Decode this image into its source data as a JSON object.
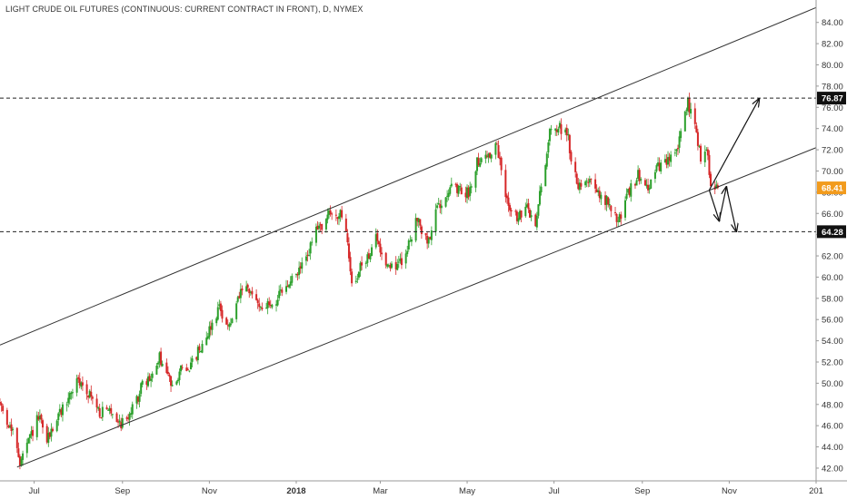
{
  "header": {
    "title": "LIGHT CRUDE OIL FUTURES (CONTINUOUS: CURRENT CONTRACT IN FRONT), D, NYMEX"
  },
  "chart_data": {
    "type": "candlestick",
    "y_ticks": [
      "84.00",
      "82.00",
      "80.00",
      "78.00",
      "76.00",
      "74.00",
      "72.00",
      "70.00",
      "68.00",
      "66.00",
      "64.00",
      "62.00",
      "60.00",
      "58.00",
      "56.00",
      "54.00",
      "52.00",
      "50.00",
      "48.00",
      "46.00",
      "44.00",
      "42.00"
    ],
    "x_ticks": [
      {
        "label": "Jul",
        "date": "2017-07-01"
      },
      {
        "label": "Sep",
        "date": "2017-09-01"
      },
      {
        "label": "Nov",
        "date": "2017-11-01"
      },
      {
        "label": "2018",
        "date": "2018-01-01",
        "bold": true
      },
      {
        "label": "Mar",
        "date": "2018-03-01"
      },
      {
        "label": "May",
        "date": "2018-05-01"
      },
      {
        "label": "Jul",
        "date": "2018-07-01"
      },
      {
        "label": "Sep",
        "date": "2018-09-01"
      },
      {
        "label": "Nov",
        "date": "2018-11-01"
      },
      {
        "label": "201",
        "date": "2019-01-01"
      }
    ],
    "ylim": [
      40.8,
      85.6
    ],
    "xlim": [
      "2017-06-07",
      "2019-01-01"
    ],
    "colors": {
      "up": "#2ca02c",
      "down": "#d62728",
      "lines": "#333333",
      "last_price_badge": "#f29b1d",
      "level_badge": "#111111"
    },
    "price_labels": [
      {
        "value": 76.87,
        "label": "76.87",
        "style": "level"
      },
      {
        "value": 68.41,
        "label": "68.41",
        "style": "last"
      },
      {
        "value": 64.28,
        "label": "64.28",
        "style": "level"
      }
    ],
    "horizontal_levels": [
      76.87,
      64.28
    ],
    "channel": {
      "upper": [
        [
          "2017-06-07",
          53.6
        ],
        [
          "2019-01-01",
          85.4
        ]
      ],
      "lower": [
        [
          "2017-06-19",
          42.1
        ],
        [
          "2019-01-01",
          72.2
        ]
      ]
    },
    "arrows": [
      {
        "from": [
          "2018-10-18",
          68.2
        ],
        "to": [
          "2018-11-22",
          76.8
        ]
      },
      {
        "from": [
          "2018-10-18",
          68.2
        ],
        "to": [
          "2018-10-25",
          65.3
        ]
      },
      {
        "from": [
          "2018-10-25",
          65.3
        ],
        "to": [
          "2018-10-30",
          68.5
        ]
      },
      {
        "from": [
          "2018-10-30",
          68.5
        ],
        "to": [
          "2018-11-06",
          64.3
        ]
      }
    ],
    "price_path": [
      [
        "2017-06-07",
        48.1
      ],
      [
        "2017-06-19",
        44.2
      ],
      [
        "2017-06-21",
        42.4
      ],
      [
        "2017-06-28",
        44.8
      ],
      [
        "2017-07-04",
        46.8
      ],
      [
        "2017-07-10",
        44.6
      ],
      [
        "2017-07-17",
        46.7
      ],
      [
        "2017-07-25",
        48.6
      ],
      [
        "2017-07-31",
        50.2
      ],
      [
        "2017-08-08",
        49.2
      ],
      [
        "2017-08-16",
        47.2
      ],
      [
        "2017-08-24",
        47.4
      ],
      [
        "2017-08-31",
        46.2
      ],
      [
        "2017-09-08",
        47.5
      ],
      [
        "2017-09-15",
        49.8
      ],
      [
        "2017-09-22",
        50.6
      ],
      [
        "2017-09-27",
        52.4
      ],
      [
        "2017-10-05",
        50.0
      ],
      [
        "2017-10-12",
        51.2
      ],
      [
        "2017-10-20",
        51.8
      ],
      [
        "2017-10-27",
        53.8
      ],
      [
        "2017-11-03",
        55.6
      ],
      [
        "2017-11-08",
        57.2
      ],
      [
        "2017-11-15",
        55.2
      ],
      [
        "2017-11-24",
        58.9
      ],
      [
        "2017-12-01",
        58.3
      ],
      [
        "2017-12-08",
        57.2
      ],
      [
        "2017-12-15",
        57.4
      ],
      [
        "2017-12-22",
        58.5
      ],
      [
        "2018-01-02",
        60.4
      ],
      [
        "2018-01-08",
        61.8
      ],
      [
        "2018-01-15",
        64.3
      ],
      [
        "2018-01-25",
        66.0
      ],
      [
        "2018-02-01",
        65.8
      ],
      [
        "2018-02-06",
        63.4
      ],
      [
        "2018-02-09",
        59.2
      ],
      [
        "2018-02-14",
        60.6
      ],
      [
        "2018-02-20",
        61.9
      ],
      [
        "2018-02-26",
        63.6
      ],
      [
        "2018-03-05",
        61.4
      ],
      [
        "2018-03-12",
        60.9
      ],
      [
        "2018-03-19",
        62.1
      ],
      [
        "2018-03-26",
        65.6
      ],
      [
        "2018-04-03",
        63.2
      ],
      [
        "2018-04-11",
        66.8
      ],
      [
        "2018-04-18",
        68.4
      ],
      [
        "2018-04-25",
        68.1
      ],
      [
        "2018-05-02",
        67.9
      ],
      [
        "2018-05-08",
        71.0
      ],
      [
        "2018-05-17",
        71.5
      ],
      [
        "2018-05-22",
        72.3
      ],
      [
        "2018-05-28",
        67.6
      ],
      [
        "2018-06-05",
        65.5
      ],
      [
        "2018-06-12",
        66.4
      ],
      [
        "2018-06-18",
        65.0
      ],
      [
        "2018-06-22",
        68.6
      ],
      [
        "2018-06-28",
        73.5
      ],
      [
        "2018-07-03",
        74.1
      ],
      [
        "2018-07-10",
        73.9
      ],
      [
        "2018-07-13",
        71.0
      ],
      [
        "2018-07-18",
        68.8
      ],
      [
        "2018-07-25",
        69.3
      ],
      [
        "2018-08-01",
        67.7
      ],
      [
        "2018-08-08",
        67.0
      ],
      [
        "2018-08-15",
        65.2
      ],
      [
        "2018-08-22",
        67.8
      ],
      [
        "2018-08-29",
        69.6
      ],
      [
        "2018-09-05",
        68.6
      ],
      [
        "2018-09-12",
        70.3
      ],
      [
        "2018-09-19",
        70.8
      ],
      [
        "2018-09-26",
        72.4
      ],
      [
        "2018-10-03",
        76.3
      ],
      [
        "2018-10-08",
        74.4
      ],
      [
        "2018-10-12",
        71.3
      ],
      [
        "2018-10-16",
        71.9
      ],
      [
        "2018-10-19",
        69.1
      ],
      [
        "2018-10-24",
        68.41
      ]
    ]
  }
}
